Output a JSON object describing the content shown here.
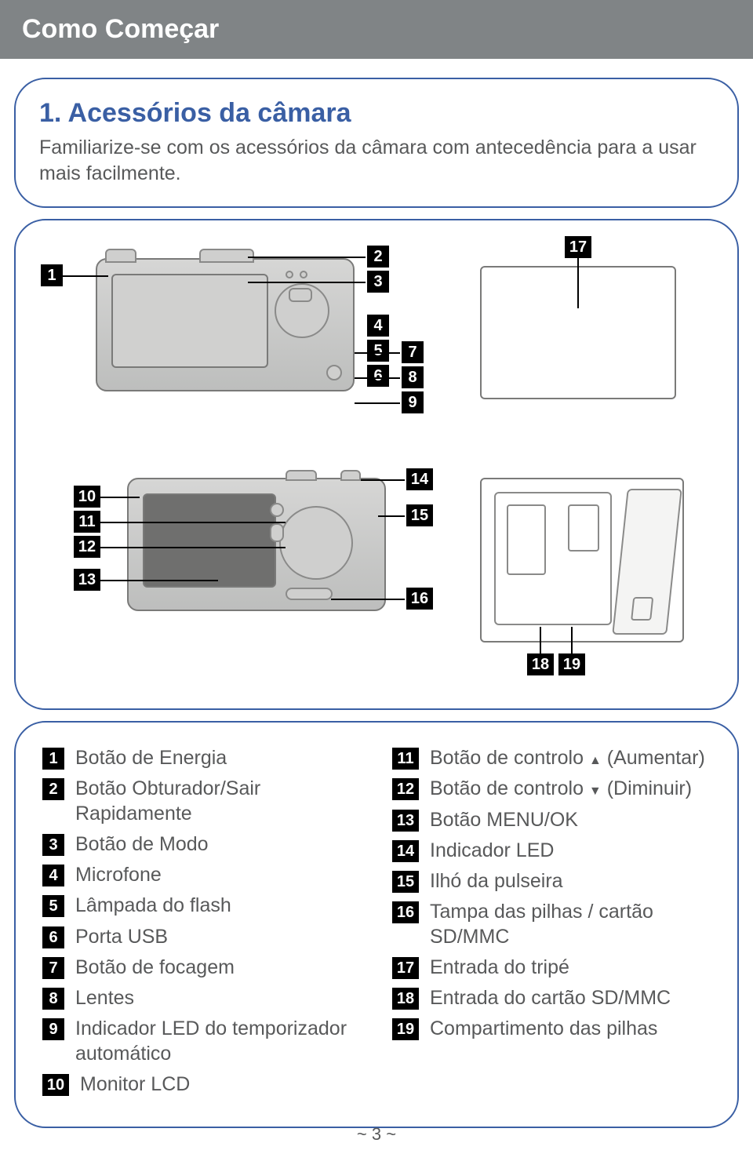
{
  "header": {
    "title": "Como Começar"
  },
  "section1": {
    "title": "1. Acessórios da câmara",
    "desc": "Familiarize-se com os acessórios da câmara com antecedência para a usar mais facilmente."
  },
  "diagram": {
    "labels": {
      "n1": "1",
      "n2": "2",
      "n3": "3",
      "n4": "4",
      "n5": "5",
      "n6": "6",
      "n7": "7",
      "n8": "8",
      "n9": "9",
      "n10": "10",
      "n11": "11",
      "n12": "12",
      "n13": "13",
      "n14": "14",
      "n15": "15",
      "n16": "16",
      "n17": "17",
      "n18": "18",
      "n19": "19"
    }
  },
  "legend": {
    "left": [
      {
        "n": "1",
        "t": "Botão de Energia"
      },
      {
        "n": "2",
        "t": "Botão Obturador/Sair Rapidamente"
      },
      {
        "n": "3",
        "t": "Botão de Modo"
      },
      {
        "n": "4",
        "t": "Microfone"
      },
      {
        "n": "5",
        "t": "Lâmpada do flash"
      },
      {
        "n": "6",
        "t": "Porta USB"
      },
      {
        "n": "7",
        "t": "Botão de focagem"
      },
      {
        "n": "8",
        "t": "Lentes"
      },
      {
        "n": "9",
        "t": "Indicador LED do temporizador automático"
      },
      {
        "n": "10",
        "t": "Monitor LCD"
      }
    ],
    "right": [
      {
        "n": "11",
        "t": "Botão de controlo",
        "suffix": "up",
        "tail": " (Aumentar)"
      },
      {
        "n": "12",
        "t": "Botão de controlo ",
        "suffix": "down",
        "tail": " (Diminuir)"
      },
      {
        "n": "13",
        "t": "Botão MENU/OK"
      },
      {
        "n": "14",
        "t": "Indicador LED"
      },
      {
        "n": "15",
        "t": "Ilhó da pulseira"
      },
      {
        "n": "16",
        "t": "Tampa das pilhas / cartão SD/MMC"
      },
      {
        "n": "17",
        "t": "Entrada do tripé"
      },
      {
        "n": "18",
        "t": "Entrada do cartão SD/MMC"
      },
      {
        "n": "19",
        "t": "Compartimento das pilhas"
      }
    ]
  },
  "page": "~ 3 ~",
  "colors": {
    "border": "#3a5fa4",
    "header_bg": "#808486",
    "text": "#58595a"
  }
}
